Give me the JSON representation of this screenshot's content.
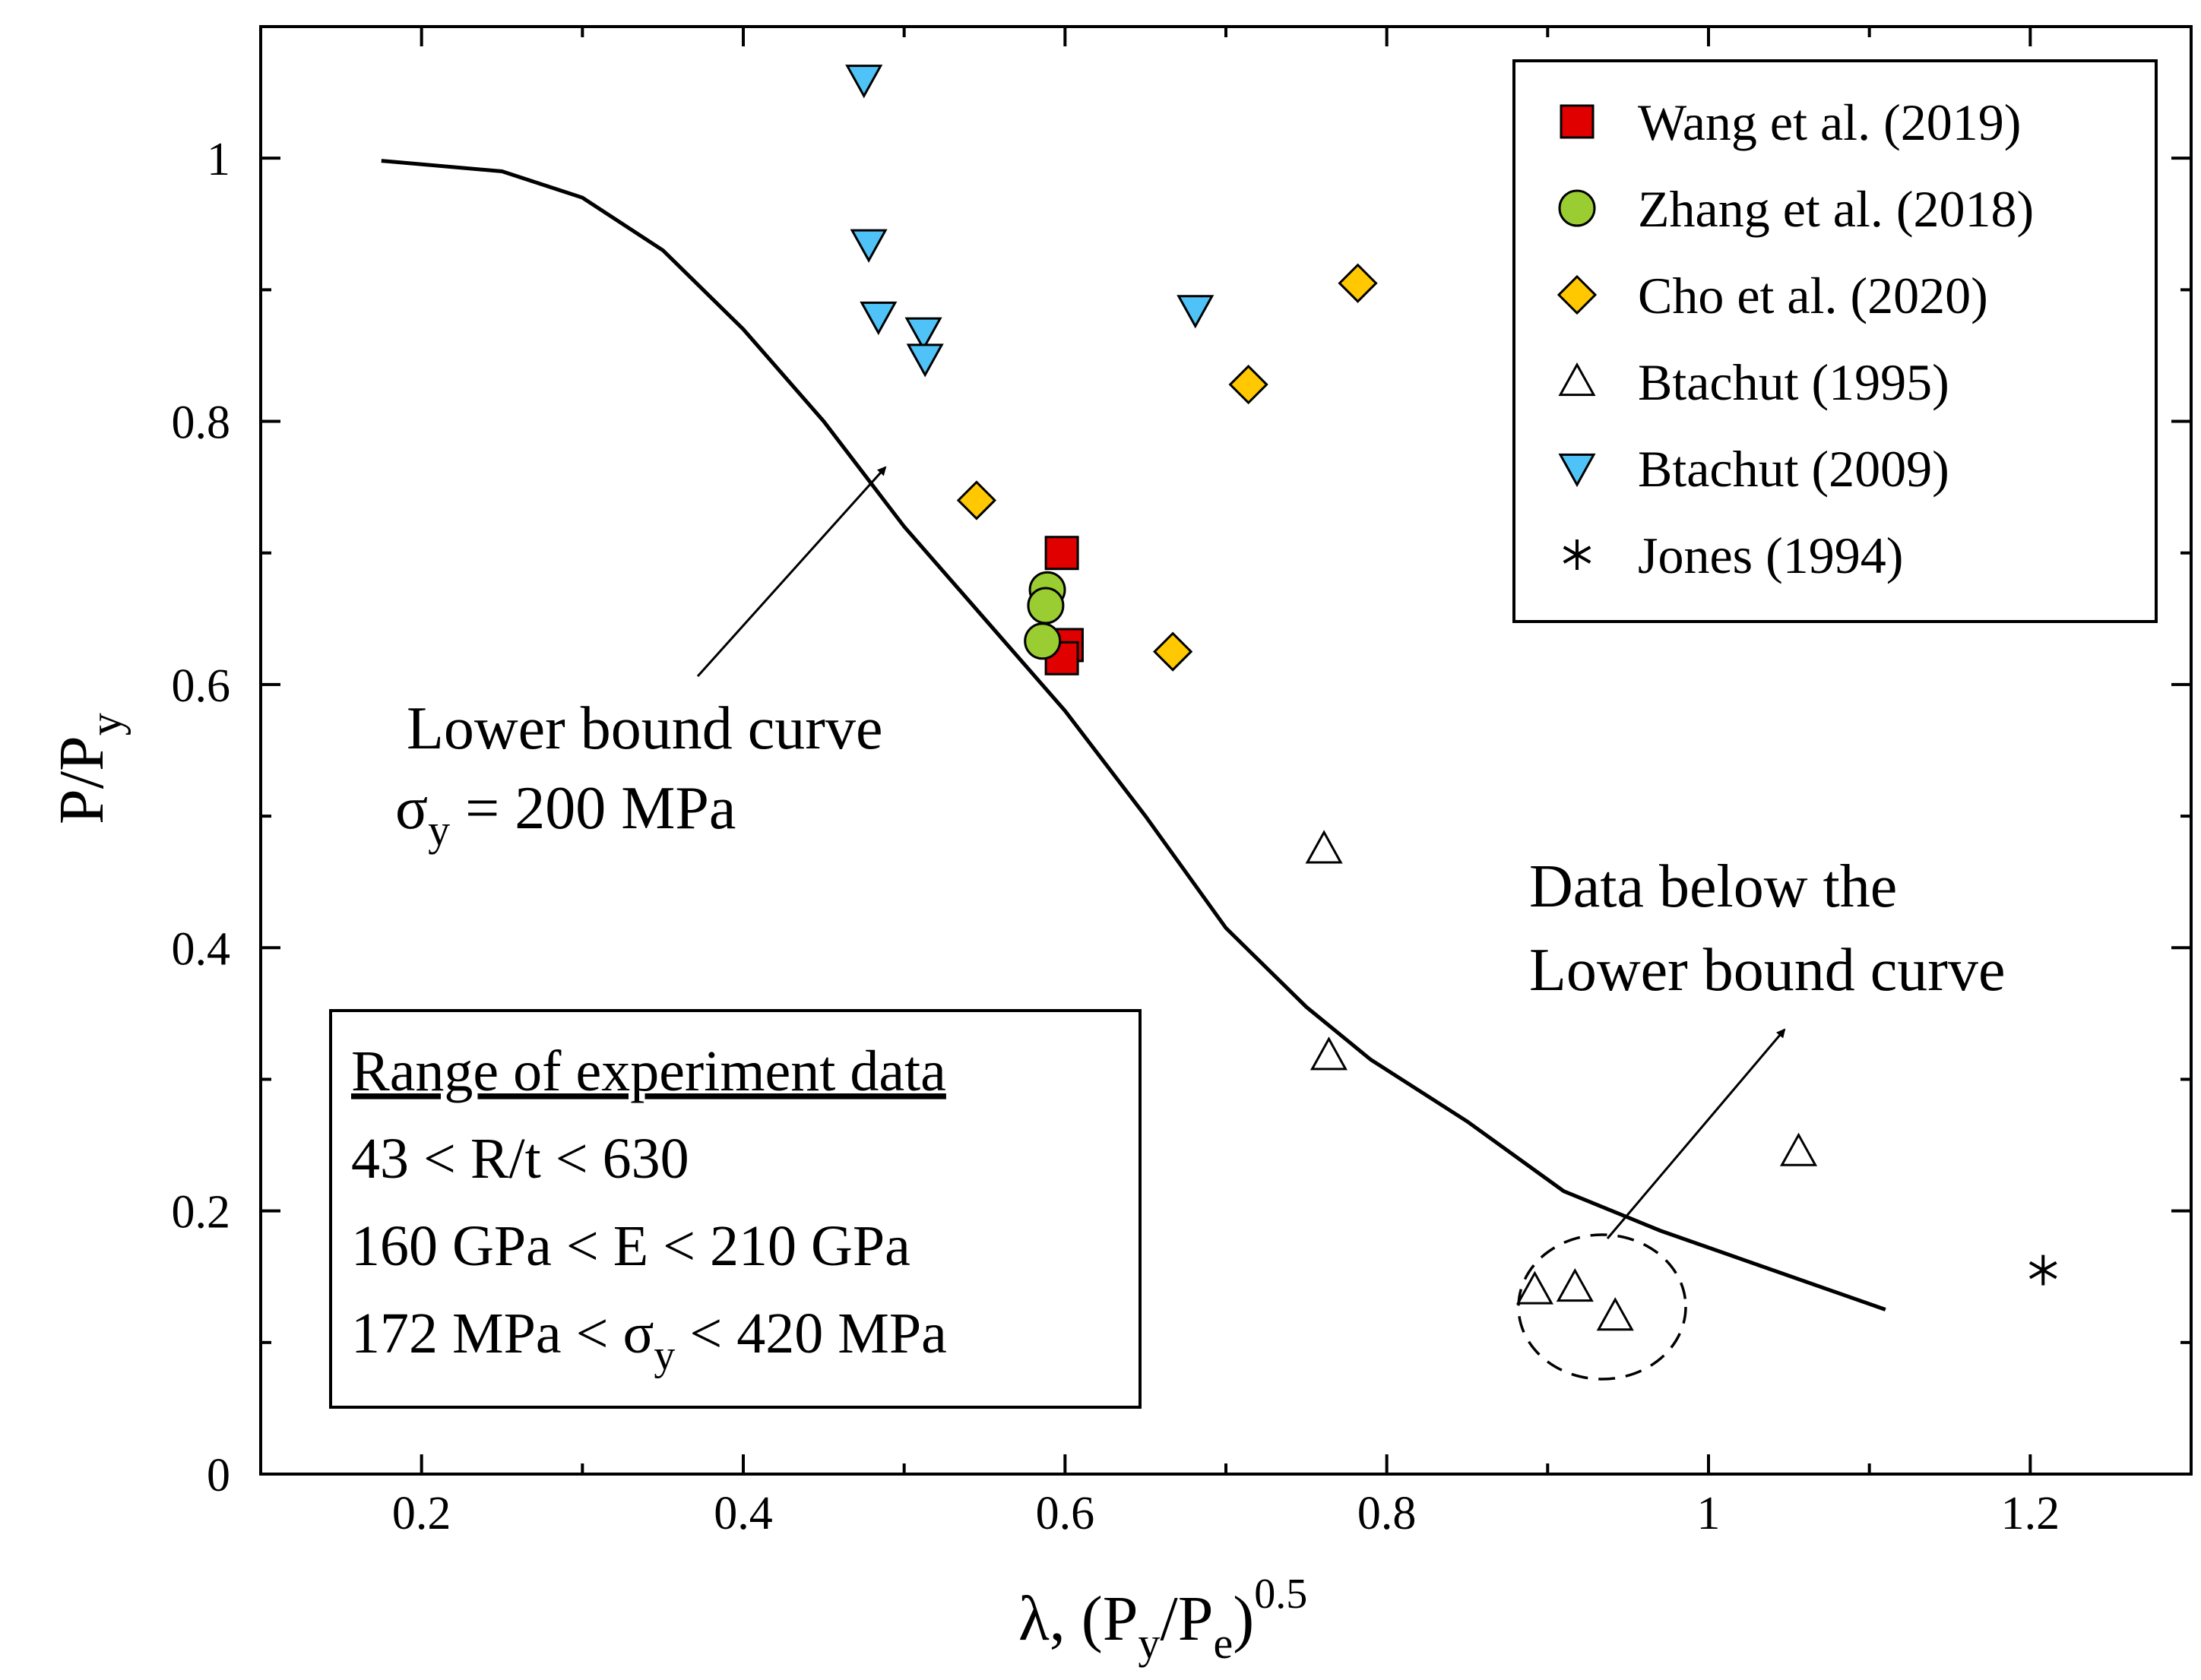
{
  "chart_data": {
    "type": "scatter",
    "title": "",
    "xlabel": {
      "main": "λ, (P",
      "sub1": "y",
      "mid": "/P",
      "sub2": "e",
      "close": ")",
      "sup": "0.5"
    },
    "ylabel": {
      "main": "P/P",
      "sub": "y"
    },
    "xlim": [
      0.1,
      1.3
    ],
    "ylim": [
      0,
      1.1
    ],
    "x_ticks": [
      0.2,
      0.4,
      0.6,
      0.8,
      1.0,
      1.2
    ],
    "x_tick_labels": [
      "0.2",
      "0.4",
      "0.6",
      "0.8",
      "1",
      "1.2"
    ],
    "y_ticks": [
      0,
      0.2,
      0.4,
      0.6,
      0.8,
      1.0
    ],
    "y_tick_labels": [
      "0",
      "0.2",
      "0.4",
      "0.6",
      "0.8",
      "1"
    ],
    "grid": false,
    "legend_position": "top-right",
    "series": [
      {
        "name": "Wang et al. (2019)",
        "marker": "square",
        "color": "#e00000",
        "points": [
          [
            0.598,
            0.7
          ],
          [
            0.601,
            0.63
          ],
          [
            0.598,
            0.62
          ]
        ]
      },
      {
        "name": "Zhang et al. (2018)",
        "marker": "circle",
        "color": "#9acd32",
        "points": [
          [
            0.589,
            0.672
          ],
          [
            0.588,
            0.66
          ],
          [
            0.586,
            0.633
          ]
        ]
      },
      {
        "name": "Cho et al. (2020)",
        "marker": "diamond",
        "color": "#ffc800",
        "points": [
          [
            0.545,
            0.74
          ],
          [
            0.667,
            0.625
          ],
          [
            0.714,
            0.828
          ],
          [
            0.782,
            0.905
          ]
        ]
      },
      {
        "name": "Btachut (1995)",
        "marker": "triangle-up",
        "color": "#ffffff",
        "points": [
          [
            0.761,
            0.475
          ],
          [
            0.764,
            0.318
          ],
          [
            0.892,
            0.14
          ],
          [
            0.917,
            0.142
          ],
          [
            0.942,
            0.12
          ],
          [
            1.056,
            0.245
          ]
        ]
      },
      {
        "name": "Btachut (2009)",
        "marker": "triangle-down",
        "color": "#4fc3f7",
        "points": [
          [
            0.475,
            1.06
          ],
          [
            0.478,
            0.935
          ],
          [
            0.484,
            0.88
          ],
          [
            0.512,
            0.868
          ],
          [
            0.513,
            0.848
          ],
          [
            0.681,
            0.885
          ]
        ]
      },
      {
        "name": "Jones (1994)",
        "marker": "asterisk",
        "color": "#000000",
        "points": [
          [
            1.208,
            0.155
          ]
        ]
      }
    ],
    "curve": {
      "name": "Lower bound curve",
      "x": [
        0.175,
        0.25,
        0.3,
        0.35,
        0.4,
        0.45,
        0.5,
        0.55,
        0.6,
        0.65,
        0.7,
        0.75,
        0.79,
        0.85,
        0.91,
        0.97,
        1.04,
        1.11
      ],
      "y": [
        0.998,
        0.99,
        0.97,
        0.93,
        0.87,
        0.8,
        0.72,
        0.65,
        0.58,
        0.5,
        0.415,
        0.355,
        0.315,
        0.268,
        0.215,
        0.185,
        0.155,
        0.125
      ]
    },
    "annotations": {
      "lower_bound_line1": "Lower bound curve",
      "lower_bound_line2_sigma": "σ",
      "lower_bound_line2_sub": "y",
      "lower_bound_line2_rest": " = 200 MPa",
      "below_line1": "Data below the",
      "below_line2": "Lower bound curve"
    },
    "range_box": {
      "title": "Range of experiment data",
      "line1": "43 < R/t < 630",
      "line2": "160 GPa < E < 210 GPa",
      "line3_pre": "172 MPa < σ",
      "line3_sub": "y",
      "line3_post": " < 420 MPa"
    }
  },
  "colors": {
    "axis": "#000000",
    "background": "#ffffff"
  }
}
